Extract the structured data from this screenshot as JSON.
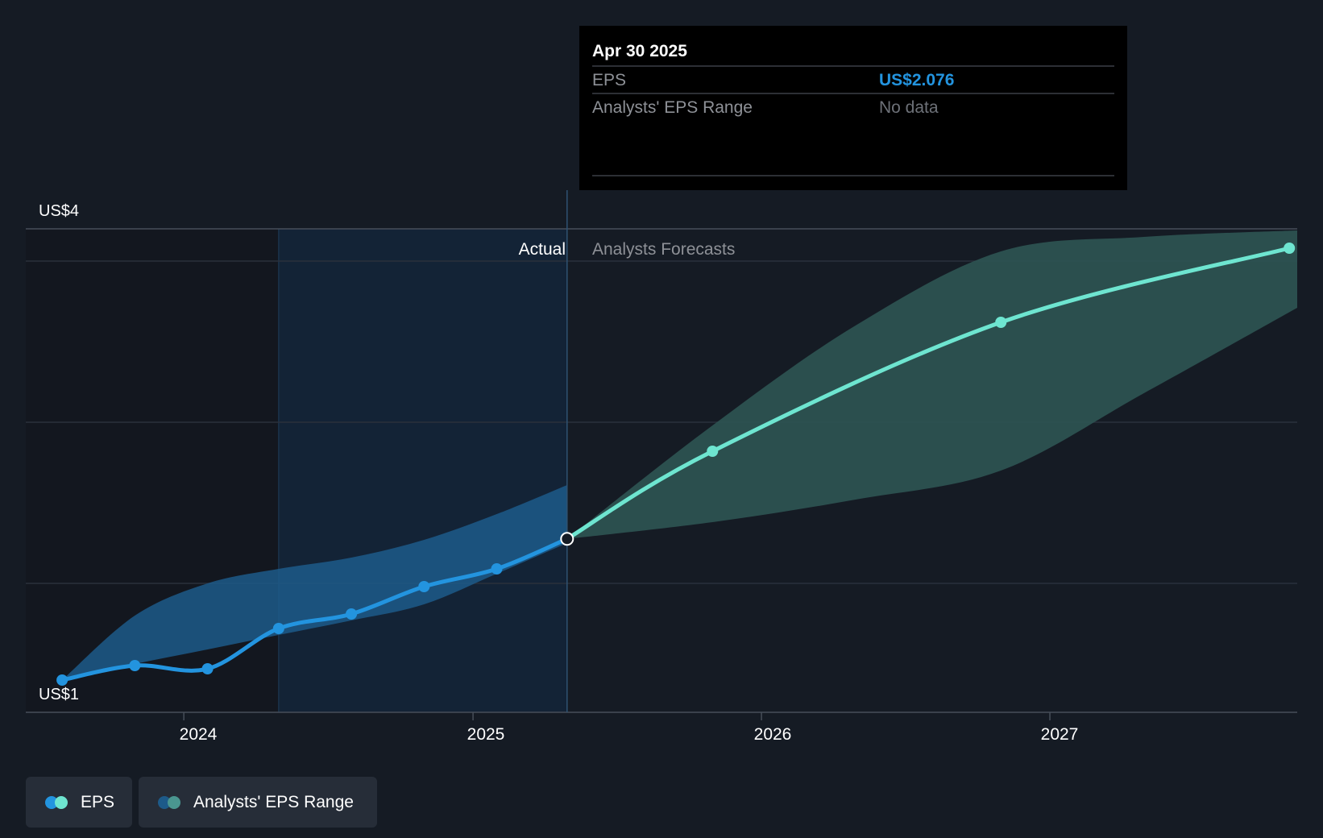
{
  "chart_data": {
    "type": "line",
    "y_tick_labels": [
      "US$4",
      "US$1"
    ],
    "ylim": [
      1,
      4
    ],
    "x_tick_labels": [
      "2024",
      "2025",
      "2026",
      "2027"
    ],
    "xlim": [
      "2023-06-15",
      "2027-11-10"
    ],
    "divider_date": "2025-04-30",
    "section_labels": {
      "actual": "Actual",
      "forecast": "Analysts Forecasts"
    },
    "series": [
      {
        "name": "EPS",
        "kind": "actual",
        "color": "#2394df",
        "points": [
          [
            "2023-07-31",
            1.2
          ],
          [
            "2023-10-31",
            1.29
          ],
          [
            "2024-01-31",
            1.27
          ],
          [
            "2024-04-30",
            1.52
          ],
          [
            "2024-07-31",
            1.61
          ],
          [
            "2024-10-31",
            1.78
          ],
          [
            "2025-01-31",
            1.89
          ],
          [
            "2025-04-30",
            2.076
          ]
        ]
      },
      {
        "name": "EPS",
        "kind": "forecast",
        "color": "#6ee5d0",
        "points": [
          [
            "2025-04-30",
            2.076
          ],
          [
            "2025-10-31",
            2.62
          ],
          [
            "2026-10-31",
            3.42
          ],
          [
            "2027-10-31",
            3.88
          ]
        ]
      }
    ],
    "ranges": [
      {
        "name": "Analysts' EPS Range",
        "kind": "actual",
        "color": "#1d5a89",
        "upper": [
          [
            "2023-07-31",
            1.2
          ],
          [
            "2023-10-31",
            1.6
          ],
          [
            "2024-01-31",
            1.8
          ],
          [
            "2024-04-30",
            1.89
          ],
          [
            "2024-07-31",
            1.96
          ],
          [
            "2024-10-31",
            2.07
          ],
          [
            "2025-01-31",
            2.23
          ],
          [
            "2025-04-30",
            2.41
          ]
        ],
        "lower": [
          [
            "2023-07-31",
            1.2
          ],
          [
            "2023-10-31",
            1.3
          ],
          [
            "2024-01-31",
            1.39
          ],
          [
            "2024-04-30",
            1.48
          ],
          [
            "2024-07-31",
            1.57
          ],
          [
            "2024-10-31",
            1.67
          ],
          [
            "2025-01-31",
            1.86
          ],
          [
            "2025-04-30",
            2.05
          ]
        ]
      },
      {
        "name": "Analysts' EPS Range",
        "kind": "forecast",
        "color": "#2e5553",
        "upper": [
          [
            "2025-04-30",
            2.076
          ],
          [
            "2025-10-31",
            2.78
          ],
          [
            "2026-04-30",
            3.4
          ],
          [
            "2026-10-31",
            3.86
          ],
          [
            "2027-04-30",
            3.95
          ],
          [
            "2027-11-10",
            3.99
          ]
        ],
        "lower": [
          [
            "2025-04-30",
            2.076
          ],
          [
            "2025-10-31",
            2.18
          ],
          [
            "2026-04-30",
            2.32
          ],
          [
            "2026-10-31",
            2.5
          ],
          [
            "2027-04-30",
            2.98
          ],
          [
            "2027-11-10",
            3.51
          ]
        ]
      }
    ]
  },
  "tooltip": {
    "date": "Apr 30 2025",
    "rows": [
      {
        "label": "EPS",
        "value": "US$2.076",
        "value_color": "#2394df"
      },
      {
        "label": "Analysts' EPS Range",
        "value": "No data",
        "value_color": "#6d7178"
      }
    ]
  },
  "legend": {
    "eps": {
      "label": "EPS",
      "colors": [
        "#2394df",
        "#6ee5d0"
      ]
    },
    "range": {
      "label": "Analysts' EPS Range",
      "colors": [
        "#1d5a89",
        "#4a9690"
      ]
    }
  }
}
